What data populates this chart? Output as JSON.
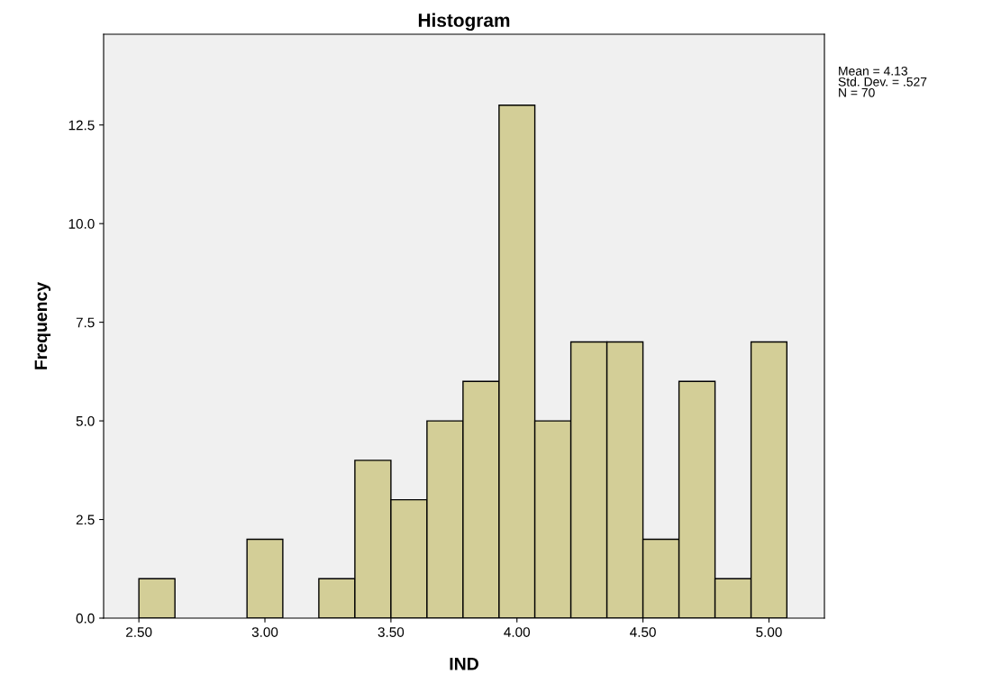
{
  "chart_data": {
    "type": "histogram",
    "title": "Histogram",
    "xlabel": "IND",
    "ylabel": "Frequency",
    "bins": [
      2.5,
      2.643,
      2.786,
      2.929,
      3.071,
      3.214,
      3.357,
      3.5,
      3.643,
      3.786,
      3.929,
      4.071,
      4.214,
      4.357,
      4.5,
      4.643,
      4.786,
      4.929,
      5.071
    ],
    "values": [
      1,
      0,
      0,
      2,
      0,
      1,
      4,
      3,
      5,
      6,
      13,
      5,
      7,
      7,
      2,
      6,
      1,
      7
    ],
    "color": "#d3ce97",
    "xlim": [
      2.36,
      5.22
    ],
    "ylim": [
      0,
      14.8
    ],
    "xticks": [
      {
        "value": 2.5,
        "label": "2.50"
      },
      {
        "value": 3.0,
        "label": "3.00"
      },
      {
        "value": 3.5,
        "label": "3.50"
      },
      {
        "value": 4.0,
        "label": "4.00"
      },
      {
        "value": 4.5,
        "label": "4.50"
      },
      {
        "value": 5.0,
        "label": "5.00"
      }
    ],
    "yticks": [
      {
        "value": 0,
        "label": "0.0"
      },
      {
        "value": 2.5,
        "label": "2.5"
      },
      {
        "value": 5,
        "label": "5.0"
      },
      {
        "value": 7.5,
        "label": "7.5"
      },
      {
        "value": 10,
        "label": "10.0"
      },
      {
        "value": 12.5,
        "label": "12.5"
      }
    ],
    "annotations": [
      "Mean = 4.13",
      "Std. Dev. = .527",
      "N = 70"
    ],
    "grid": false,
    "legend": false
  }
}
